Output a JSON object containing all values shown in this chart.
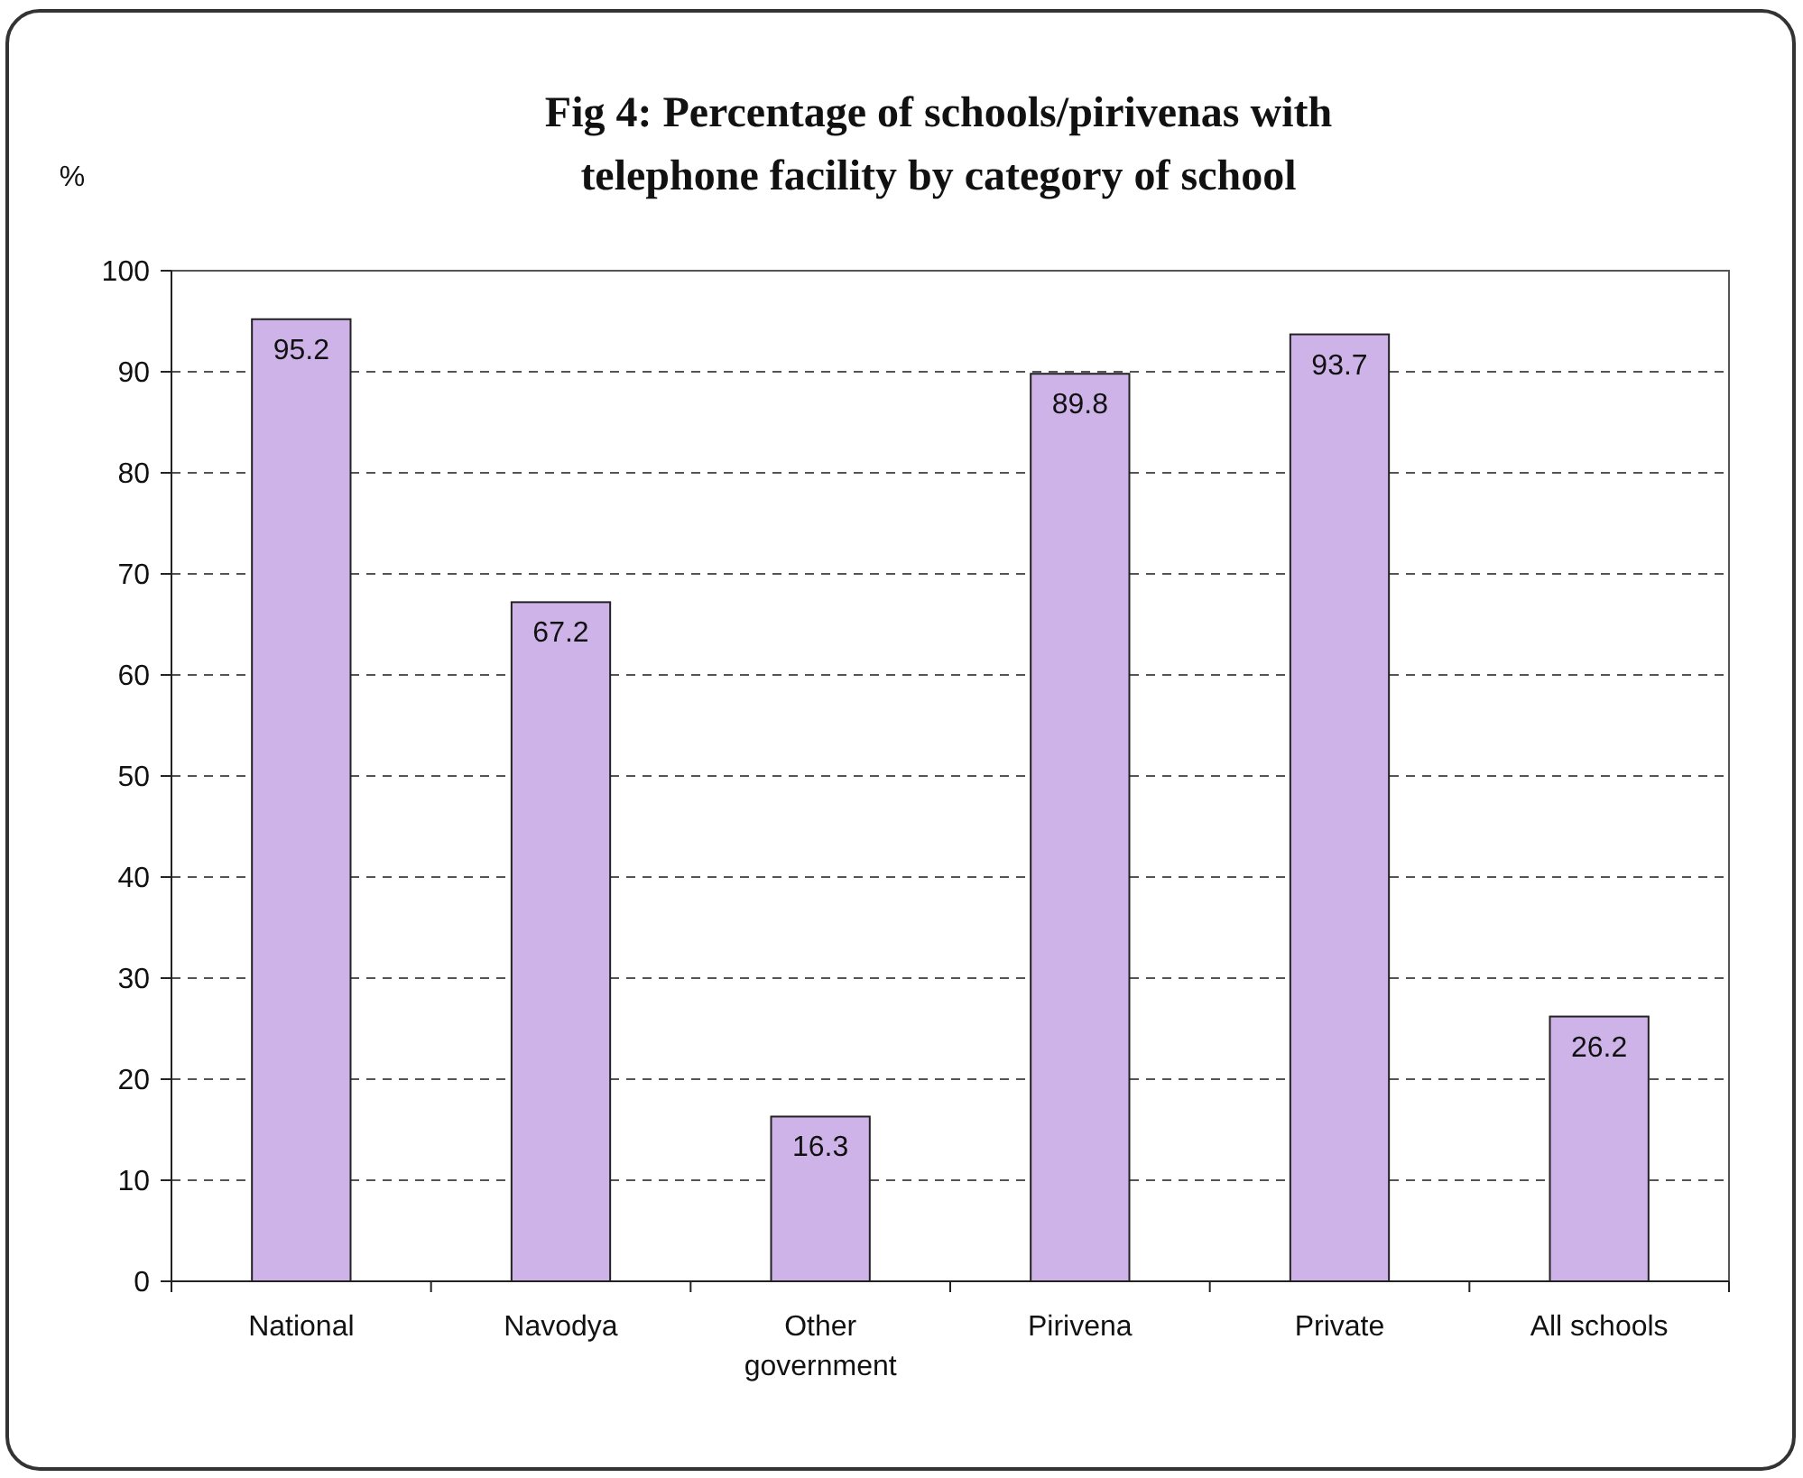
{
  "chart_data": {
    "type": "bar",
    "title": "Fig 4: Percentage of schools/pirivenas with\ntelephone facility by category of school",
    "ylabel": "%",
    "categories": [
      "National",
      "Navodya",
      "Other government",
      "Pirivena",
      "Private",
      "All schools"
    ],
    "values": [
      95.2,
      67.2,
      16.3,
      89.8,
      93.7,
      26.2
    ],
    "color": "#cdb3e8",
    "ylim": [
      0,
      100
    ],
    "yticks": [
      0,
      10,
      20,
      30,
      40,
      50,
      60,
      70,
      80,
      90,
      100
    ],
    "grid": "y",
    "data_labels": true
  }
}
